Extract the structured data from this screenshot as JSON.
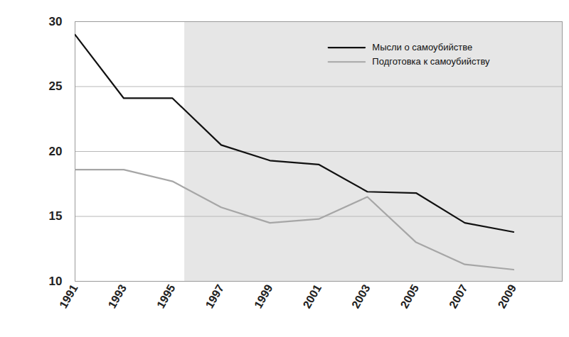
{
  "chart_data": {
    "type": "line",
    "x": [
      1991,
      1993,
      1995,
      1997,
      1999,
      2001,
      2003,
      2005,
      2007,
      2009
    ],
    "series": [
      {
        "name": "Мысли о самоубийстве",
        "color": "#111111",
        "values": [
          29.0,
          24.1,
          24.1,
          20.5,
          19.3,
          19.0,
          16.9,
          16.8,
          14.5,
          13.8
        ]
      },
      {
        "name": "Подготовка к самоубийству",
        "color": "#a6a6a6",
        "values": [
          18.6,
          18.6,
          17.7,
          15.7,
          14.5,
          14.8,
          16.5,
          13.0,
          11.3,
          10.9
        ]
      }
    ],
    "xlim": [
      1991,
      2011
    ],
    "xticks": [
      1991,
      1993,
      1995,
      1997,
      1999,
      2001,
      2003,
      2005,
      2007,
      2009
    ],
    "ylim": [
      10,
      30
    ],
    "yticks": [
      10,
      15,
      20,
      25,
      30
    ],
    "highlight_x": [
      1995.5,
      2011
    ],
    "grid": true,
    "legend": "top-right"
  }
}
